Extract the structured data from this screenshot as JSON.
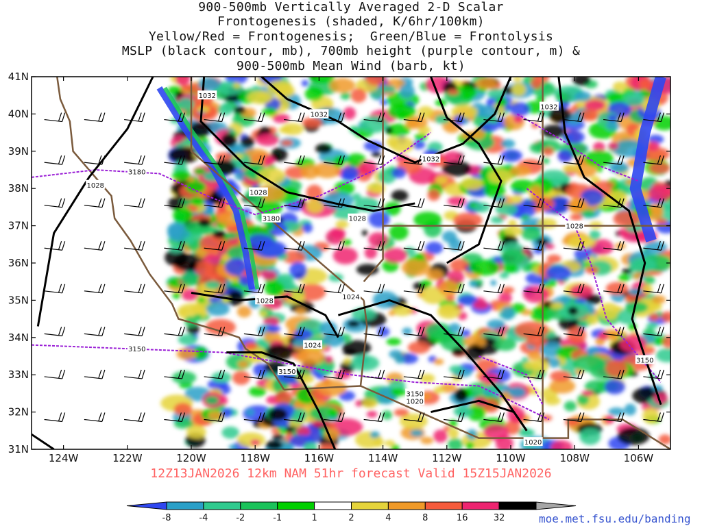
{
  "title": {
    "lines": [
      "900-500mb Vertically Averaged 2-D Scalar",
      "Frontogenesis (shaded, K/6hr/100km)",
      "Yellow/Red = Frontogenesis;  Green/Blue = Frontolysis",
      "MSLP (black contour, mb), 700mb height (purple contour, m) &",
      "900-500mb Mean Wind (barb, kt)"
    ]
  },
  "forecast_line": "12Z13JAN2026 12km NAM 51hr forecast Valid 15Z15JAN2026",
  "credit": "moe.met.fsu.edu/banding",
  "map": {
    "region": "US Southwest",
    "lat_range": [
      31,
      41
    ],
    "lon_range": [
      -125,
      -105
    ],
    "lat_ticks": [
      "31N",
      "32N",
      "33N",
      "34N",
      "35N",
      "36N",
      "37N",
      "38N",
      "39N",
      "40N",
      "41N"
    ],
    "lon_ticks": [
      "124W",
      "122W",
      "120W",
      "118W",
      "116W",
      "114W",
      "112W",
      "110W",
      "108W",
      "106W"
    ],
    "mslp_labels": [
      "1032",
      "1032",
      "1032",
      "1032",
      "1028",
      "1028",
      "1028",
      "1028",
      "1028",
      "1024",
      "1024",
      "1020",
      "1020"
    ],
    "height_labels": [
      "3180",
      "3180",
      "3150",
      "3150",
      "3150",
      "3150"
    ],
    "colors": {
      "mslp": "#000000",
      "height": "#9a1fd6",
      "border": "#7a5a3c",
      "barb": "#000000"
    }
  },
  "colorbar": {
    "labels": [
      "-8",
      "-4",
      "-2",
      "-1",
      "1",
      "2",
      "4",
      "8",
      "16",
      "32"
    ],
    "colors": [
      "#2f47f0",
      "#2aa0c8",
      "#2fca8e",
      "#1ac35a",
      "#00d000",
      "#ffffff",
      "#e5d43b",
      "#f09a28",
      "#f55b3c",
      "#ee2470",
      "#000000",
      "#a6a6a6"
    ]
  }
}
